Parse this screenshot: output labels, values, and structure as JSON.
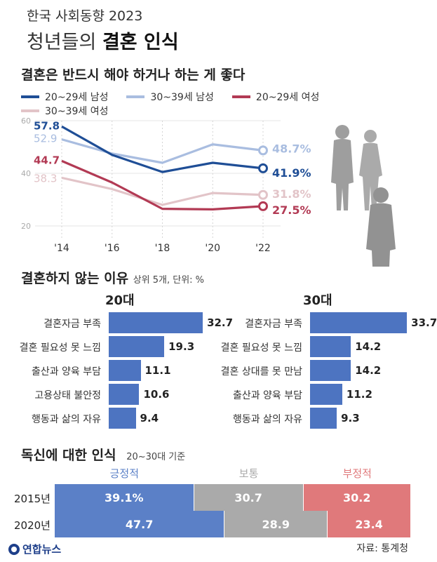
{
  "header": {
    "top": "한국 사회동향 2023",
    "title_prefix": "청년들의 ",
    "title_bold": "결혼 인식"
  },
  "line_section": {
    "title": "결혼은 반드시 해야 하거나 하는 게 좋다"
  },
  "bars_section": {
    "title": "결혼하지 않는 이유",
    "subtitle": "상위 5개, 단위: %"
  },
  "stack_section": {
    "title": "독신에 대한 인식",
    "subtitle": "20~30대 기준"
  },
  "footer": {
    "logo": "연합뉴스",
    "source": "자료: 통계청"
  },
  "colors": {
    "male20": "#1f4e96",
    "male30": "#a9bde0",
    "female20": "#b23a54",
    "female30": "#e2c4c8",
    "bar": "#4d74c1",
    "positive": "#5b80c7",
    "neutral": "#aaaaaa",
    "negative": "#e0797b"
  },
  "chart_data": [
    {
      "type": "line",
      "title": "결혼은 반드시 해야 하거나 하는 게 좋다",
      "x": [
        "'14",
        "'16",
        "'18",
        "'20",
        "'22"
      ],
      "ylim": [
        20,
        60
      ],
      "yticks": [
        "20",
        "40",
        "60"
      ],
      "grid": true,
      "legend_position": "top",
      "series": [
        {
          "name": "20~29세 남성",
          "values": [
            57.8,
            47.0,
            40.5,
            44.0,
            41.9
          ],
          "start_label": "57.8",
          "end_label": "41.9%",
          "color_key": "male20"
        },
        {
          "name": "30~39세 남성",
          "values": [
            52.9,
            47.5,
            44.0,
            51.0,
            48.7
          ],
          "start_label": "52.9",
          "end_label": "48.7%",
          "color_key": "male30"
        },
        {
          "name": "20~29세 여성",
          "values": [
            44.7,
            36.5,
            26.5,
            26.3,
            27.5
          ],
          "start_label": "44.7",
          "end_label": "27.5%",
          "color_key": "female20"
        },
        {
          "name": "30~39세 여성",
          "values": [
            38.3,
            34.0,
            28.0,
            32.5,
            31.8
          ],
          "start_label": "38.3",
          "end_label": "31.8%",
          "color_key": "female30"
        }
      ]
    },
    {
      "type": "bar",
      "title": "20대",
      "categories": [
        "결혼자금 부족",
        "결혼 필요성 못 느낌",
        "출산과 양육 부담",
        "고용상태 불안정",
        "행동과 삶의 자유"
      ],
      "values": [
        32.7,
        19.3,
        11.1,
        10.6,
        9.4
      ],
      "value_labels": [
        "32.7",
        "19.3",
        "11.1",
        "10.6",
        "9.4"
      ]
    },
    {
      "type": "bar",
      "title": "30대",
      "categories": [
        "결혼자금 부족",
        "결혼 필요성 못 느낌",
        "결혼 상대를 못 만남",
        "출산과 양육 부담",
        "행동과 삶의 자유"
      ],
      "values": [
        33.7,
        14.2,
        14.2,
        11.2,
        9.3
      ],
      "value_labels": [
        "33.7",
        "14.2",
        "14.2",
        "11.2",
        "9.3"
      ]
    },
    {
      "type": "bar",
      "stacked": true,
      "title": "독신에 대한 인식",
      "categories": [
        "2015년",
        "2020년"
      ],
      "series": [
        {
          "name": "긍정적",
          "values": [
            39.1,
            47.7
          ],
          "labels": [
            "39.1%",
            "47.7"
          ],
          "color_key": "positive"
        },
        {
          "name": "보통",
          "values": [
            30.7,
            28.9
          ],
          "labels": [
            "30.7",
            "28.9"
          ],
          "color_key": "neutral"
        },
        {
          "name": "부정적",
          "values": [
            30.2,
            23.4
          ],
          "labels": [
            "30.2",
            "23.4"
          ],
          "color_key": "negative"
        }
      ]
    }
  ]
}
